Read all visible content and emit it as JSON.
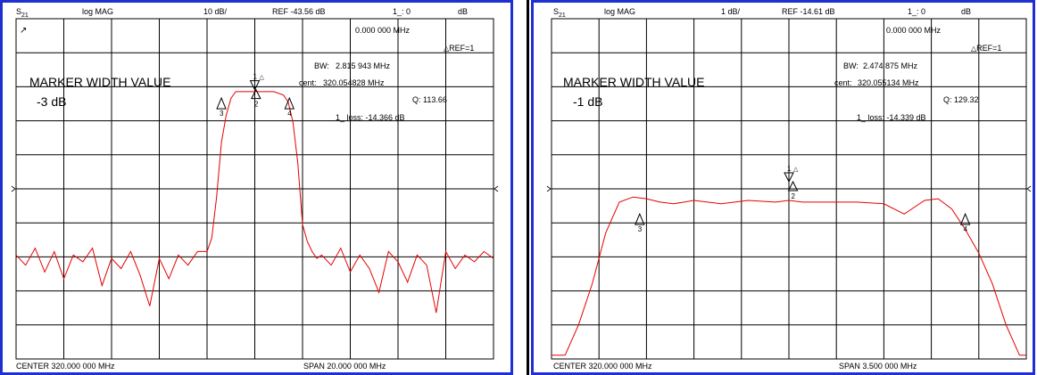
{
  "colors": {
    "trace": "#e60000",
    "grid": "#000000",
    "frame": "#1f2fd0"
  },
  "panels": [
    {
      "header": {
        "param": "S",
        "param_sub": "21",
        "format": "log MAG",
        "scale": "10 dB/",
        "ref": "REF -43.56 dB",
        "marker_readout": "1_: 0",
        "marker_unit": "dB"
      },
      "corner_icon": "↗",
      "annotations": {
        "marker_freq": "0.000 000 MHz",
        "ref_marker": "REF=1",
        "bw": "BW:",
        "bw_val": "2.815 943 MHz",
        "cent": "cent:",
        "cent_val": "320.054828 MHz",
        "q": "Q: 113.66",
        "loss": "1_ loss: -14.366 dB",
        "mw_title": "MARKER WIDTH VALUE",
        "mw_value": "-3 dB"
      },
      "footer": {
        "center": "CENTER  320.000 000 MHz",
        "span": "SPAN   20.000 000 MHz"
      },
      "markers": [
        "1",
        "2",
        "3",
        "4"
      ]
    },
    {
      "header": {
        "param": "S",
        "param_sub": "21",
        "format": "log MAG",
        "scale": "1 dB/",
        "ref": "REF -14.61 dB",
        "marker_readout": "1_: 0",
        "marker_unit": "dB"
      },
      "annotations": {
        "marker_freq": "0.000 000 MHz",
        "ref_marker": "REF=1",
        "bw": "BW:",
        "bw_val": "2.474 875 MHz",
        "cent": "cent:",
        "cent_val": "320.055134 MHz",
        "q": "Q: 129.32",
        "loss": "1_ loss: -14.339 dB",
        "mw_title": "MARKER WIDTH VALUE",
        "mw_value": "-1 dB"
      },
      "footer": {
        "center": "CENTER  320.000 000 MHz",
        "span": "SPAN    3.500 000 MHz"
      },
      "markers": [
        "1",
        "2",
        "3",
        "4"
      ]
    }
  ],
  "chart_data": [
    {
      "type": "line",
      "xlabel": "",
      "ylabel": "",
      "x_center_mhz": 320.0,
      "x_span_mhz": 20.0,
      "xlim": [
        310.0,
        330.0
      ],
      "ylim": [
        -93.56,
        6.44
      ],
      "ref_db": -43.56,
      "scale_db_per_div": 10,
      "grid": true,
      "series": [
        {
          "x": [
            310.0,
            310.4,
            310.8,
            311.2,
            311.6,
            312.0,
            312.4,
            312.8,
            313.2,
            313.6,
            314.0,
            314.4,
            314.8,
            315.2,
            315.6,
            316.0,
            316.4,
            316.8,
            317.2,
            317.6,
            318.0,
            318.2,
            318.4,
            318.6,
            318.8,
            319.0,
            319.2,
            319.6,
            320.0,
            320.4,
            320.8,
            321.2,
            321.4,
            321.6,
            321.8,
            322.0,
            322.2,
            322.4,
            322.6,
            322.8,
            323.2,
            323.6,
            324.0,
            324.4,
            324.8,
            325.2,
            325.6,
            326.0,
            326.4,
            326.8,
            327.2,
            327.6,
            328.0,
            328.4,
            328.8,
            329.2,
            329.6,
            330.0
          ],
          "y": [
            -63,
            -66,
            -61,
            -68,
            -62,
            -70,
            -63,
            -65,
            -61,
            -72,
            -64,
            -67,
            -62,
            -69,
            -78,
            -64,
            -70,
            -63,
            -66,
            -62,
            -62,
            -58,
            -46,
            -30,
            -22,
            -17,
            -15,
            -15,
            -15,
            -15,
            -15,
            -16,
            -18,
            -24,
            -36,
            -54,
            -59,
            -62,
            -64,
            -63,
            -66,
            -61,
            -68,
            -63,
            -67,
            -74,
            -62,
            -65,
            -71,
            -63,
            -66,
            -80,
            -62,
            -67,
            -63,
            -65,
            -62,
            -64
          ]
        }
      ],
      "markers": [
        {
          "label": "1",
          "x": 320.0,
          "y": -14.4
        },
        {
          "label": "2",
          "x": 320.05,
          "y": -14.4
        },
        {
          "label": "3",
          "x": 318.6,
          "y": -17.4
        },
        {
          "label": "4",
          "x": 321.45,
          "y": -17.4
        }
      ]
    },
    {
      "type": "line",
      "xlabel": "",
      "ylabel": "",
      "x_center_mhz": 320.0,
      "x_span_mhz": 3.5,
      "xlim": [
        318.25,
        321.75
      ],
      "ylim": [
        -19.61,
        -9.61
      ],
      "ref_db": -14.61,
      "scale_db_per_div": 1,
      "grid": true,
      "series": [
        {
          "x": [
            318.25,
            318.35,
            318.45,
            318.55,
            318.65,
            318.75,
            318.85,
            318.95,
            319.05,
            319.15,
            319.3,
            319.5,
            319.7,
            319.9,
            320.0,
            320.1,
            320.3,
            320.5,
            320.7,
            320.85,
            321.0,
            321.1,
            321.2,
            321.3,
            321.4,
            321.5,
            321.6,
            321.7,
            321.75
          ],
          "y": [
            -19.5,
            -19.5,
            -18.6,
            -17.4,
            -15.9,
            -15.0,
            -14.85,
            -14.9,
            -15.0,
            -15.05,
            -14.95,
            -15.05,
            -14.95,
            -15.0,
            -14.95,
            -15.0,
            -15.0,
            -15.0,
            -15.05,
            -15.35,
            -14.95,
            -14.9,
            -15.2,
            -15.8,
            -16.5,
            -17.4,
            -18.6,
            -19.5,
            -19.5
          ]
        }
      ],
      "markers": [
        {
          "label": "1",
          "x": 320.0,
          "y": -14.4
        },
        {
          "label": "2",
          "x": 320.03,
          "y": -14.4
        },
        {
          "label": "3",
          "x": 318.9,
          "y": -15.4
        },
        {
          "label": "4",
          "x": 321.3,
          "y": -15.4
        }
      ]
    }
  ]
}
